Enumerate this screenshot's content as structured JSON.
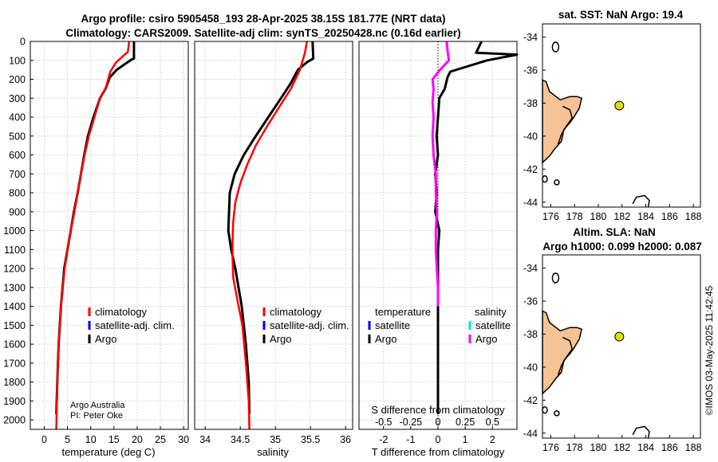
{
  "titles": {
    "line1": "Argo profile: csiro 5905458_193 28-Apr-2025 38.15S 181.77E (NRT data)",
    "line2": "Climatology: CARS2009. Satellite-adj clim: synTS_20250428.nc (0.16d earlier)"
  },
  "colors": {
    "climatology": "#ff0000",
    "satellite": "#0000ff",
    "argo": "#000000",
    "salinity_diff": "#ff00ff",
    "salinity_sat": "#00e5e5",
    "land": "#f5c396",
    "float_marker": "#dde000"
  },
  "chart_data": [
    {
      "type": "line",
      "name": "temperature",
      "xlabel": "temperature (deg C)",
      "ylabel": "",
      "xlim": [
        -3,
        31
      ],
      "ylim": [
        2050,
        0
      ],
      "xticks": [
        0,
        5,
        10,
        15,
        20,
        25,
        30
      ],
      "xtick_labels": [
        "0",
        "5",
        "10",
        "15",
        "20",
        "25",
        "30"
      ],
      "yticks": [
        0,
        100,
        200,
        300,
        400,
        500,
        600,
        700,
        800,
        900,
        1000,
        1100,
        1200,
        1300,
        1400,
        1500,
        1600,
        1700,
        1800,
        1900,
        2000
      ],
      "ytick_labels": [
        "0",
        "100",
        "200",
        "300",
        "400",
        "500",
        "600",
        "700",
        "800",
        "900",
        "1000",
        "1100",
        "1200",
        "1300",
        "1400",
        "1500",
        "1600",
        "1700",
        "1800",
        "1900",
        "2000"
      ],
      "legend": [
        "climatology",
        "satellite-adj. clim.",
        "Argo"
      ],
      "legend_location": "lower-right",
      "annotations": [
        "Argo Australia",
        "PI: Peter Oke"
      ],
      "series": [
        {
          "name": "climatology",
          "x": [
            18.3,
            18.0,
            15.5,
            14.2,
            13.2,
            12.0,
            10.8,
            9.6,
            8.7,
            7.9,
            7.2,
            6.5,
            5.7,
            5.0,
            4.4,
            3.6,
            3.1,
            2.8,
            2.6
          ],
          "y": [
            0,
            55,
            110,
            160,
            250,
            300,
            400,
            500,
            600,
            700,
            800,
            900,
            1000,
            1100,
            1200,
            1400,
            1600,
            1800,
            2050
          ]
        },
        {
          "name": "argo",
          "x": [
            19.3,
            19.3,
            18.8,
            15.6,
            14.1,
            13.2,
            12.0,
            10.6,
            9.4,
            8.6,
            7.9,
            7.2,
            6.4,
            5.7,
            5.0,
            4.3,
            3.6,
            3.1,
            2.8,
            2.6
          ],
          "y": [
            0,
            90,
            95,
            150,
            190,
            250,
            300,
            400,
            500,
            600,
            700,
            800,
            900,
            1000,
            1100,
            1200,
            1400,
            1600,
            1800,
            1970
          ]
        }
      ]
    },
    {
      "type": "line",
      "name": "salinity",
      "xlabel": "salinity",
      "xlim": [
        33.85,
        36.1
      ],
      "ylim": [
        2050,
        0
      ],
      "xticks": [
        34,
        34.5,
        35,
        35.5,
        36
      ],
      "xtick_labels": [
        "34",
        "34.5",
        "35",
        "35.5",
        "36"
      ],
      "legend": [
        "climatology",
        "satellite-adj. clim.",
        "Argo"
      ],
      "legend_location": "lower-right",
      "series": [
        {
          "name": "climatology",
          "x": [
            35.45,
            35.42,
            35.35,
            35.22,
            35.05,
            34.88,
            34.72,
            34.6,
            34.5,
            34.43,
            34.4,
            34.39,
            34.39,
            34.4,
            34.45,
            34.53,
            34.58,
            34.62,
            34.63
          ],
          "y": [
            0,
            60,
            150,
            250,
            350,
            450,
            550,
            650,
            750,
            850,
            950,
            1050,
            1150,
            1250,
            1350,
            1500,
            1700,
            1900,
            2050
          ]
        },
        {
          "name": "argo",
          "x": [
            35.53,
            35.54,
            35.45,
            35.32,
            35.22,
            35.08,
            34.9,
            34.72,
            34.55,
            34.42,
            34.35,
            34.34,
            34.33,
            34.37,
            34.43,
            34.52,
            34.58,
            34.62,
            34.63
          ],
          "y": [
            0,
            90,
            110,
            150,
            220,
            300,
            400,
            500,
            600,
            700,
            800,
            900,
            1000,
            1100,
            1200,
            1400,
            1600,
            1800,
            1970
          ]
        }
      ]
    },
    {
      "type": "line",
      "name": "difference",
      "xlabel": "T difference from climatology",
      "xlabel_top": "S difference from climatology",
      "xlim": [
        -2.9,
        2.9
      ],
      "ylim": [
        2050,
        0
      ],
      "xticks": [
        -2,
        -1,
        0,
        1,
        2
      ],
      "xtick_labels": [
        "-2",
        "-1",
        "0",
        "1",
        "2"
      ],
      "s_xticks": [
        -0.5,
        -0.25,
        0,
        0.25,
        0.5
      ],
      "s_xtick_labels": [
        "-0.5",
        "-0.25",
        "0",
        "0.25",
        "0.5"
      ],
      "s_xlim": [
        -0.725,
        0.725
      ],
      "legend_temperature_title": "temperature",
      "legend_salinity_title": "salinity",
      "legend_temperature": [
        "satellite",
        "Argo"
      ],
      "legend_salinity": [
        "satellite",
        "Argo"
      ],
      "series": [
        {
          "name": "T difference (Argo)",
          "x": [
            1.6,
            1.4,
            2.9,
            1.8,
            0.45,
            0.35,
            0.25,
            0.05,
            0.0,
            -0.05,
            0.0,
            -0.1,
            -0.05,
            -0.1,
            0.05,
            0.0,
            0.0,
            0.0,
            0.0,
            0.0
          ],
          "y": [
            0,
            60,
            70,
            100,
            160,
            190,
            250,
            300,
            400,
            500,
            600,
            700,
            800,
            900,
            1000,
            1100,
            1300,
            1500,
            1800,
            1970
          ]
        },
        {
          "name": "S difference (Argo)",
          "x": [
            0.08,
            0.09,
            0.1,
            0.02,
            -0.05,
            -0.04,
            -0.05,
            -0.04,
            -0.05,
            -0.04,
            -0.02,
            -0.02,
            -0.01,
            -0.02,
            -0.02,
            -0.01,
            0.0,
            0.0
          ],
          "y": [
            0,
            60,
            100,
            150,
            200,
            250,
            320,
            400,
            500,
            600,
            700,
            800,
            900,
            1000,
            1100,
            1200,
            1300,
            1400
          ]
        }
      ]
    }
  ],
  "maps": {
    "sst": {
      "title": "sat. SST: NaN Argo: 19.4",
      "xticks": [
        "176",
        "178",
        "180",
        "182",
        "184",
        "186",
        "188"
      ],
      "yticks": [
        "-34",
        "-36",
        "-38",
        "-40",
        "-42",
        "-44"
      ],
      "float_lon": 181.77,
      "float_lat": -38.15
    },
    "sla": {
      "title1": "Altim. SLA: NaN",
      "title2": "Argo h1000: 0.099 h2000: 0.087",
      "xticks": [
        "176",
        "178",
        "180",
        "182",
        "184",
        "186",
        "188"
      ],
      "yticks": [
        "-34",
        "-36",
        "-38",
        "-40",
        "-42",
        "-44"
      ],
      "float_lon": 181.77,
      "float_lat": -38.15
    }
  },
  "credit": "©IMOS 03-May-2025 11:42:45"
}
